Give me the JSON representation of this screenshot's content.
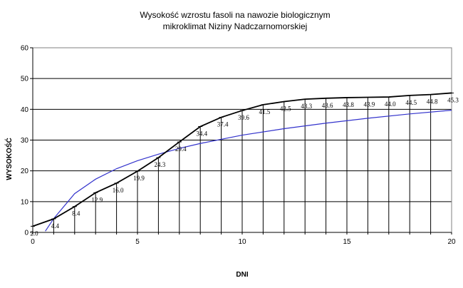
{
  "chart_data": {
    "type": "line",
    "title": "Wysokość wzrostu fasoli na nawozie biologicznym",
    "subtitle": "mikroklimat Niziny Nadczarnomorskiej",
    "xlabel": "DNI",
    "ylabel": "WYSOKOŚĆ",
    "xlim": [
      0,
      20
    ],
    "ylim": [
      0,
      60
    ],
    "x_ticks": [
      0,
      5,
      10,
      15,
      20
    ],
    "y_ticks": [
      0,
      10,
      20,
      30,
      40,
      50,
      60
    ],
    "grid": "horizontal major gridlines plus vertical drop lines from each point",
    "legend": "none",
    "series": [
      {
        "color": "#000000",
        "x": [
          0,
          1,
          2,
          3,
          4,
          5,
          6,
          7,
          8,
          9,
          10,
          11,
          12,
          13,
          14,
          15,
          16,
          17,
          18,
          19,
          20
        ],
        "values": [
          2.0,
          4.4,
          8.4,
          12.9,
          16.0,
          19.9,
          24.3,
          29.4,
          34.4,
          37.4,
          39.6,
          41.5,
          42.5,
          43.3,
          43.6,
          43.8,
          43.9,
          44.0,
          44.5,
          44.8,
          45.3
        ],
        "labels": [
          "2.0",
          "4.4",
          "8.4",
          "12.9",
          "16.0",
          "19.9",
          "24.3",
          "29.4",
          "34.4",
          "37.4",
          "39.6",
          "41.5",
          "42.5",
          "43.3",
          "43.6",
          "43.8",
          "43.9",
          "44.0",
          "44.5",
          "44.8",
          "45.3"
        ]
      }
    ],
    "trendline": {
      "kind": "logarithmic",
      "color": "#3333cc",
      "x": [
        0.6,
        1,
        2,
        3,
        4,
        5,
        6,
        7,
        8,
        10,
        12,
        14,
        16,
        18,
        20
      ],
      "values": [
        0.4,
        4.5,
        12.6,
        17.3,
        20.7,
        23.3,
        25.4,
        27.3,
        28.9,
        31.6,
        33.7,
        35.5,
        37.1,
        38.5,
        39.7
      ]
    }
  }
}
